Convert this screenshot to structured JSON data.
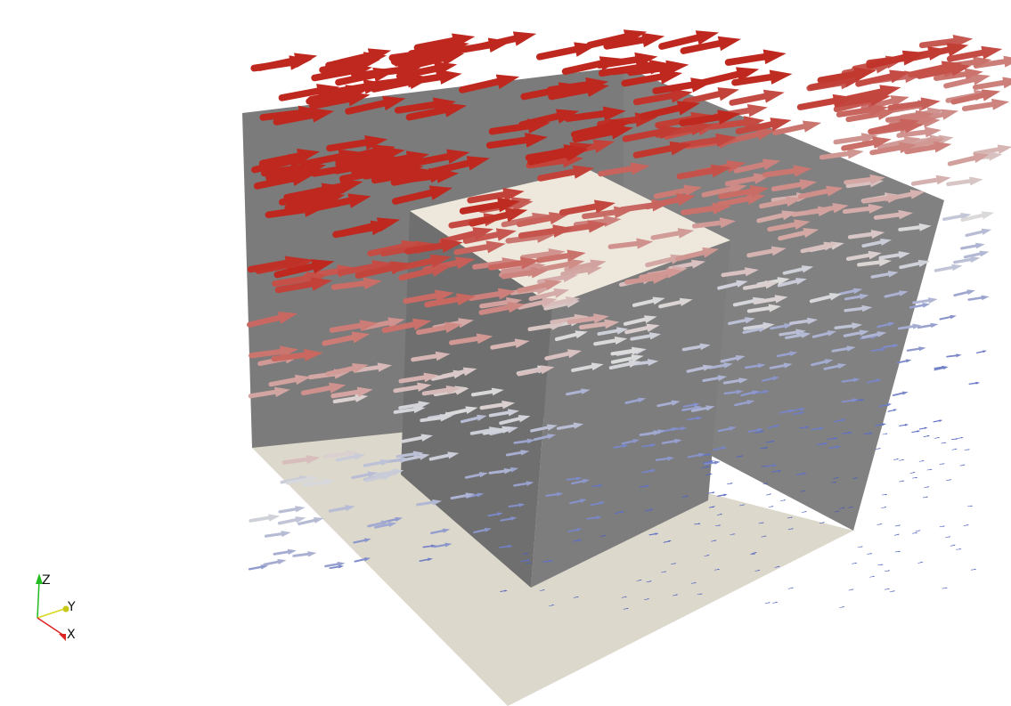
{
  "scene": {
    "description_visible": false,
    "colors": {
      "background": "#ffffff",
      "back_wall": "#7a7a7a",
      "floor": "#ddd8cc",
      "obstacle_front": "#6e6e6e",
      "obstacle_side": "#7c7c7c",
      "obstacle_top": "#eee8dc",
      "vector_low": "#3b4cc0",
      "vector_mid": "#dddddd",
      "vector_high": "#b40426"
    }
  },
  "orientation_axes": {
    "z_label": "Z",
    "y_label": "Y",
    "x_label": "X",
    "z_color": "#22bb22",
    "y_color": "#d8d820",
    "x_color": "#dd2222"
  }
}
